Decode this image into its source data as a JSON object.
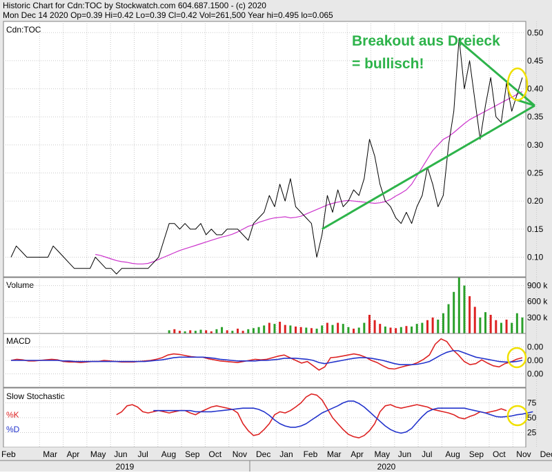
{
  "header": {
    "line1": "Historic Chart for Cdn:TOC by Stockwatch.com 604.687.1500 - (c) 2020",
    "line2": "Mon Dec 14 2020   Op=0.39   Hi=0.42   Lo=0.39   Cl=0.42   Vol=261,500   Year hi=0.495   lo=0.065"
  },
  "annotation": {
    "line1": "Breakout aus Dreieck",
    "line2": "= bullisch!",
    "color": "#2db34a",
    "circle_color": "#f0e000"
  },
  "colors": {
    "price": "#000000",
    "moving_average": "#cc33cc",
    "macd_line": "#dd2222",
    "macd_signal": "#2233cc",
    "volume_up": "#2aa02a",
    "volume_down": "#dd2222",
    "triangle": "#2db34a"
  },
  "x_axis": {
    "months": [
      "Feb",
      "Mar",
      "Apr",
      "May",
      "Jun",
      "Jul",
      "Aug",
      "Sep",
      "Oct",
      "Nov",
      "Dec",
      "Jan",
      "Feb",
      "Mar",
      "Apr",
      "May",
      "Jun",
      "Jul",
      "Aug",
      "Sep",
      "Oct",
      "Nov",
      "Dec"
    ],
    "years": [
      "2019",
      "2020"
    ]
  },
  "chart_data": [
    {
      "type": "line",
      "panel": "price",
      "title": "Cdn:TOC",
      "ylim": [
        0.065,
        0.52
      ],
      "y_ticks": [
        "0.50",
        "0.45",
        "0.40",
        "0.35",
        "0.30",
        "0.25",
        "0.20",
        "0.15",
        "0.10"
      ],
      "y_tick_values": [
        0.5,
        0.45,
        0.4,
        0.35,
        0.3,
        0.25,
        0.2,
        0.15,
        0.1
      ],
      "x_index_range": [
        0,
        97
      ],
      "series": [
        {
          "role": "price",
          "values": [
            0.1,
            0.12,
            0.11,
            0.1,
            0.1,
            0.1,
            0.1,
            0.1,
            0.12,
            0.11,
            0.1,
            0.09,
            0.08,
            0.08,
            0.08,
            0.08,
            0.1,
            0.09,
            0.08,
            0.08,
            0.07,
            0.08,
            0.08,
            0.08,
            0.08,
            0.08,
            0.08,
            0.09,
            0.1,
            0.13,
            0.16,
            0.16,
            0.15,
            0.16,
            0.15,
            0.15,
            0.16,
            0.14,
            0.15,
            0.14,
            0.14,
            0.15,
            0.15,
            0.15,
            0.14,
            0.13,
            0.16,
            0.17,
            0.18,
            0.21,
            0.19,
            0.23,
            0.2,
            0.24,
            0.19,
            0.18,
            0.17,
            0.16,
            0.1,
            0.14,
            0.21,
            0.18,
            0.22,
            0.19,
            0.2,
            0.22,
            0.21,
            0.24,
            0.31,
            0.28,
            0.23,
            0.2,
            0.19,
            0.17,
            0.16,
            0.18,
            0.16,
            0.19,
            0.21,
            0.26,
            0.23,
            0.19,
            0.21,
            0.3,
            0.36,
            0.49,
            0.4,
            0.45,
            0.38,
            0.31,
            0.37,
            0.42,
            0.35,
            0.34,
            0.41,
            0.36,
            0.39,
            0.42
          ]
        },
        {
          "role": "moving_average",
          "start_index": 16,
          "values": [
            0.105,
            0.103,
            0.1,
            0.097,
            0.094,
            0.092,
            0.091,
            0.089,
            0.088,
            0.088,
            0.089,
            0.092,
            0.096,
            0.1,
            0.104,
            0.108,
            0.112,
            0.115,
            0.118,
            0.121,
            0.124,
            0.127,
            0.13,
            0.133,
            0.136,
            0.138,
            0.141,
            0.145,
            0.15,
            0.155,
            0.158,
            0.162,
            0.165,
            0.168,
            0.17,
            0.171,
            0.172,
            0.17,
            0.171,
            0.173,
            0.177,
            0.181,
            0.185,
            0.189,
            0.193,
            0.196,
            0.198,
            0.2,
            0.201,
            0.2,
            0.199,
            0.198,
            0.197,
            0.196,
            0.197,
            0.199,
            0.203,
            0.209,
            0.214,
            0.22,
            0.23,
            0.245,
            0.26,
            0.275,
            0.29,
            0.3,
            0.31,
            0.315,
            0.322,
            0.33,
            0.338,
            0.345,
            0.35,
            0.355,
            0.36,
            0.365,
            0.37,
            0.375,
            0.38,
            0.385,
            0.39,
            0.395
          ]
        }
      ],
      "trendlines": [
        {
          "name": "upper",
          "from": [
            85,
            0.485
          ],
          "to": [
            97,
            0.37
          ]
        },
        {
          "name": "lower",
          "from": [
            59,
            0.15
          ],
          "to": [
            97,
            0.37
          ]
        },
        {
          "name": "apex",
          "from": [
            96,
            0.38
          ],
          "to": [
            97,
            0.37
          ]
        }
      ]
    },
    {
      "type": "bar",
      "panel": "volume",
      "title": "Volume",
      "ylim": [
        0,
        1050
      ],
      "y_ticks": [
        "900 k",
        "600 k",
        "300 k"
      ],
      "y_tick_values": [
        900,
        600,
        300
      ],
      "values": [
        0,
        0,
        0,
        0,
        0,
        0,
        0,
        0,
        0,
        0,
        0,
        0,
        0,
        0,
        0,
        0,
        0,
        0,
        0,
        0,
        0,
        0,
        0,
        0,
        0,
        0,
        0,
        0,
        0,
        0,
        60,
        80,
        50,
        40,
        60,
        50,
        70,
        60,
        40,
        80,
        120,
        60,
        50,
        90,
        50,
        80,
        100,
        120,
        150,
        200,
        180,
        220,
        160,
        150,
        130,
        120,
        110,
        100,
        90,
        150,
        200,
        160,
        200,
        180,
        120,
        90,
        110,
        200,
        350,
        250,
        180,
        130,
        110,
        100,
        120,
        140,
        130,
        180,
        200,
        250,
        300,
        260,
        380,
        550,
        780,
        1050,
        900,
        700,
        500,
        300,
        400,
        350,
        250,
        200,
        260,
        200,
        380,
        300
      ],
      "up_flags": [
        1,
        1,
        1,
        1,
        1,
        1,
        1,
        1,
        1,
        1,
        1,
        1,
        1,
        1,
        1,
        1,
        1,
        1,
        1,
        1,
        1,
        1,
        1,
        1,
        1,
        1,
        1,
        1,
        1,
        1,
        1,
        0,
        0,
        1,
        0,
        1,
        1,
        0,
        0,
        1,
        1,
        0,
        1,
        0,
        0,
        1,
        1,
        1,
        1,
        0,
        1,
        0,
        0,
        1,
        0,
        0,
        1,
        0,
        1,
        1,
        0,
        1,
        0,
        1,
        1,
        0,
        1,
        1,
        0,
        0,
        0,
        1,
        0,
        0,
        1,
        0,
        1,
        1,
        1,
        0,
        0,
        1,
        1,
        1,
        1,
        1,
        1,
        0,
        0,
        1,
        1,
        0,
        0,
        1,
        0,
        1,
        1,
        1
      ]
    },
    {
      "type": "line",
      "panel": "macd",
      "title": "MACD",
      "ylim": [
        -0.05,
        0.05
      ],
      "y_ticks": [
        "0.00",
        "0.00",
        "0.00"
      ],
      "y_tick_values": [
        0.025,
        0.0,
        -0.025
      ],
      "series": [
        {
          "role": "macd_line",
          "values": [
            0.0,
            0.002,
            0.001,
            -0.001,
            -0.001,
            0.0,
            0.001,
            0.002,
            0.001,
            -0.002,
            -0.003,
            -0.003,
            -0.004,
            -0.003,
            -0.002,
            -0.002,
            0.0,
            -0.001,
            -0.002,
            -0.003,
            -0.003,
            -0.003,
            -0.002,
            -0.001,
            0.0,
            0.002,
            0.005,
            0.01,
            0.012,
            0.011,
            0.009,
            0.007,
            0.006,
            0.006,
            0.003,
            0.001,
            -0.001,
            -0.002,
            -0.003,
            -0.004,
            -0.002,
            0.0,
            0.002,
            0.001,
            0.002,
            0.005,
            0.008,
            0.01,
            0.005,
            0.0,
            -0.005,
            -0.002,
            -0.01,
            -0.018,
            -0.012,
            0.005,
            0.006,
            0.008,
            0.01,
            0.012,
            0.01,
            0.006,
            0.0,
            -0.004,
            -0.01,
            -0.015,
            -0.016,
            -0.013,
            -0.01,
            -0.008,
            -0.004,
            0.002,
            0.01,
            0.03,
            0.04,
            0.035,
            0.02,
            0.01,
            -0.002,
            -0.008,
            -0.006,
            0.001,
            -0.005,
            -0.01,
            -0.012,
            -0.006,
            -0.003,
            0.002,
            0.005
          ]
        },
        {
          "role": "macd_signal",
          "values": [
            0.0,
            0.0,
            0.0,
            0.0,
            0.0,
            0.0,
            0.0,
            0.0,
            0.0,
            -0.001,
            -0.001,
            -0.002,
            -0.002,
            -0.002,
            -0.002,
            -0.002,
            -0.002,
            -0.002,
            -0.002,
            -0.002,
            -0.002,
            -0.002,
            -0.002,
            -0.002,
            -0.001,
            0.0,
            0.001,
            0.003,
            0.005,
            0.006,
            0.006,
            0.006,
            0.006,
            0.006,
            0.005,
            0.004,
            0.002,
            0.001,
            0.0,
            -0.001,
            -0.001,
            -0.001,
            -0.001,
            0.0,
            0.0,
            0.001,
            0.002,
            0.004,
            0.004,
            0.004,
            0.003,
            0.002,
            0.0,
            -0.004,
            -0.006,
            -0.004,
            -0.002,
            0.0,
            0.002,
            0.004,
            0.005,
            0.005,
            0.004,
            0.002,
            0.0,
            -0.003,
            -0.006,
            -0.008,
            -0.008,
            -0.008,
            -0.007,
            -0.005,
            -0.002,
            0.004,
            0.01,
            0.015,
            0.018,
            0.018,
            0.014,
            0.01,
            0.006,
            0.004,
            0.002,
            0.0,
            -0.002,
            -0.003,
            -0.003,
            -0.002,
            0.0
          ]
        }
      ]
    },
    {
      "type": "line",
      "panel": "slow_stochastic",
      "title": "Slow Stochastic",
      "ylim": [
        0,
        100
      ],
      "y_ticks": [
        "75",
        "50",
        "25"
      ],
      "y_tick_values": [
        75,
        50,
        25
      ],
      "legend": [
        "%K",
        "%D"
      ],
      "series": [
        {
          "name": "%K",
          "role": "stoch_k",
          "start_index": 20,
          "values": [
            55,
            60,
            70,
            72,
            68,
            60,
            58,
            60,
            62,
            60,
            58,
            60,
            62,
            62,
            58,
            55,
            60,
            64,
            68,
            70,
            68,
            66,
            64,
            58,
            40,
            28,
            20,
            22,
            30,
            40,
            55,
            60,
            58,
            62,
            68,
            75,
            85,
            90,
            88,
            80,
            65,
            50,
            40,
            30,
            22,
            18,
            16,
            20,
            28,
            40,
            60,
            70,
            72,
            68,
            66,
            68,
            70,
            72,
            70,
            68,
            64,
            62,
            60,
            58,
            55,
            50,
            48,
            52,
            55,
            60,
            58,
            60,
            62,
            65,
            62
          ]
        },
        {
          "name": "%D",
          "role": "stoch_d",
          "start_index": 27,
          "values": [
            62,
            62,
            62,
            62,
            62,
            62,
            62,
            62,
            60,
            60,
            60,
            60,
            61,
            62,
            63,
            64,
            65,
            66,
            66,
            66,
            64,
            60,
            54,
            46,
            40,
            36,
            34,
            34,
            36,
            40,
            46,
            52,
            58,
            62,
            66,
            70,
            75,
            78,
            78,
            74,
            68,
            60,
            52,
            44,
            36,
            30,
            26,
            24,
            26,
            32,
            42,
            52,
            60,
            64,
            66,
            66,
            66,
            66,
            66,
            66,
            64,
            62,
            60,
            58,
            55,
            52,
            51,
            52,
            53,
            55,
            56,
            58,
            60
          ]
        }
      ]
    }
  ]
}
